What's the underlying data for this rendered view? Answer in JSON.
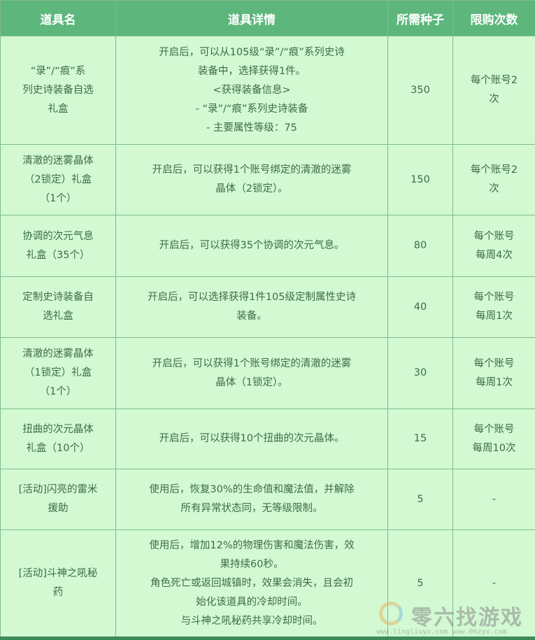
{
  "headers": [
    "道具名",
    "道具详情",
    "所需种子",
    "限购次数"
  ],
  "rows": [
    {
      "name": "“录”/“痕”系\n列史诗装备自选\n礼盒",
      "detail": "开启后，可以从105级“录”/“痕”系列史诗\n装备中，选择获得1件。\n<获得装备信息>\n- “录”/“痕”系列史诗装备\n- 主要属性等级：75",
      "seeds": "350",
      "limit": "每个账号2\n次"
    },
    {
      "name": "清澈的迷雾晶体\n（2锁定）礼盒\n（1个）",
      "detail": "开启后，可以获得1个账号绑定的清澈的迷雾\n晶体（2锁定）。",
      "seeds": "150",
      "limit": "每个账号2\n次"
    },
    {
      "name": "协调的次元气息\n礼盒（35个）",
      "detail": "开启后，可以获得35个协调的次元气息。",
      "seeds": "80",
      "limit": "每个账号\n每周4次"
    },
    {
      "name": "定制史诗装备自\n选礼盒",
      "detail": "开启后，可以选择获得1件105级定制属性史诗\n装备。",
      "seeds": "40",
      "limit": "每个账号\n每周1次"
    },
    {
      "name": "清澈的迷雾晶体\n（1锁定）礼盒\n（1个）",
      "detail": "开启后，可以获得1个账号绑定的清澈的迷雾\n晶体（1锁定）。",
      "seeds": "30",
      "limit": "每个账号\n每周1次"
    },
    {
      "name": "扭曲的次元晶体\n礼盒（10个）",
      "detail": "开启后，可以获得10个扭曲的次元晶体。",
      "seeds": "15",
      "limit": "每个账号\n每周10次"
    },
    {
      "name": "[活动]闪亮的雷米\n援助",
      "detail": "使用后，恢复30%的生命值和魔法值，并解除\n所有异常状态同，无等级限制。",
      "seeds": "5",
      "limit": "-"
    },
    {
      "name": "[活动]斗神之吼秘\n药",
      "detail": "使用后，增加12%的物理伤害和魔法伤害，效\n果持续60秒。\n角色死亡或返回城镇时，效果会消失，且会初\n始化该道具的冷却时间。\n与斗神之吼秘药共享冷却时间。",
      "seeds": "5",
      "limit": "-"
    }
  ],
  "watermark": {
    "title": "零六找游戏",
    "url": "www.lingliuyx.com  www.06zyx.com"
  },
  "colors": {
    "header_bg": "#5db77d",
    "cell_bg": "#d2f9d2",
    "text": "#3d6b4a"
  }
}
